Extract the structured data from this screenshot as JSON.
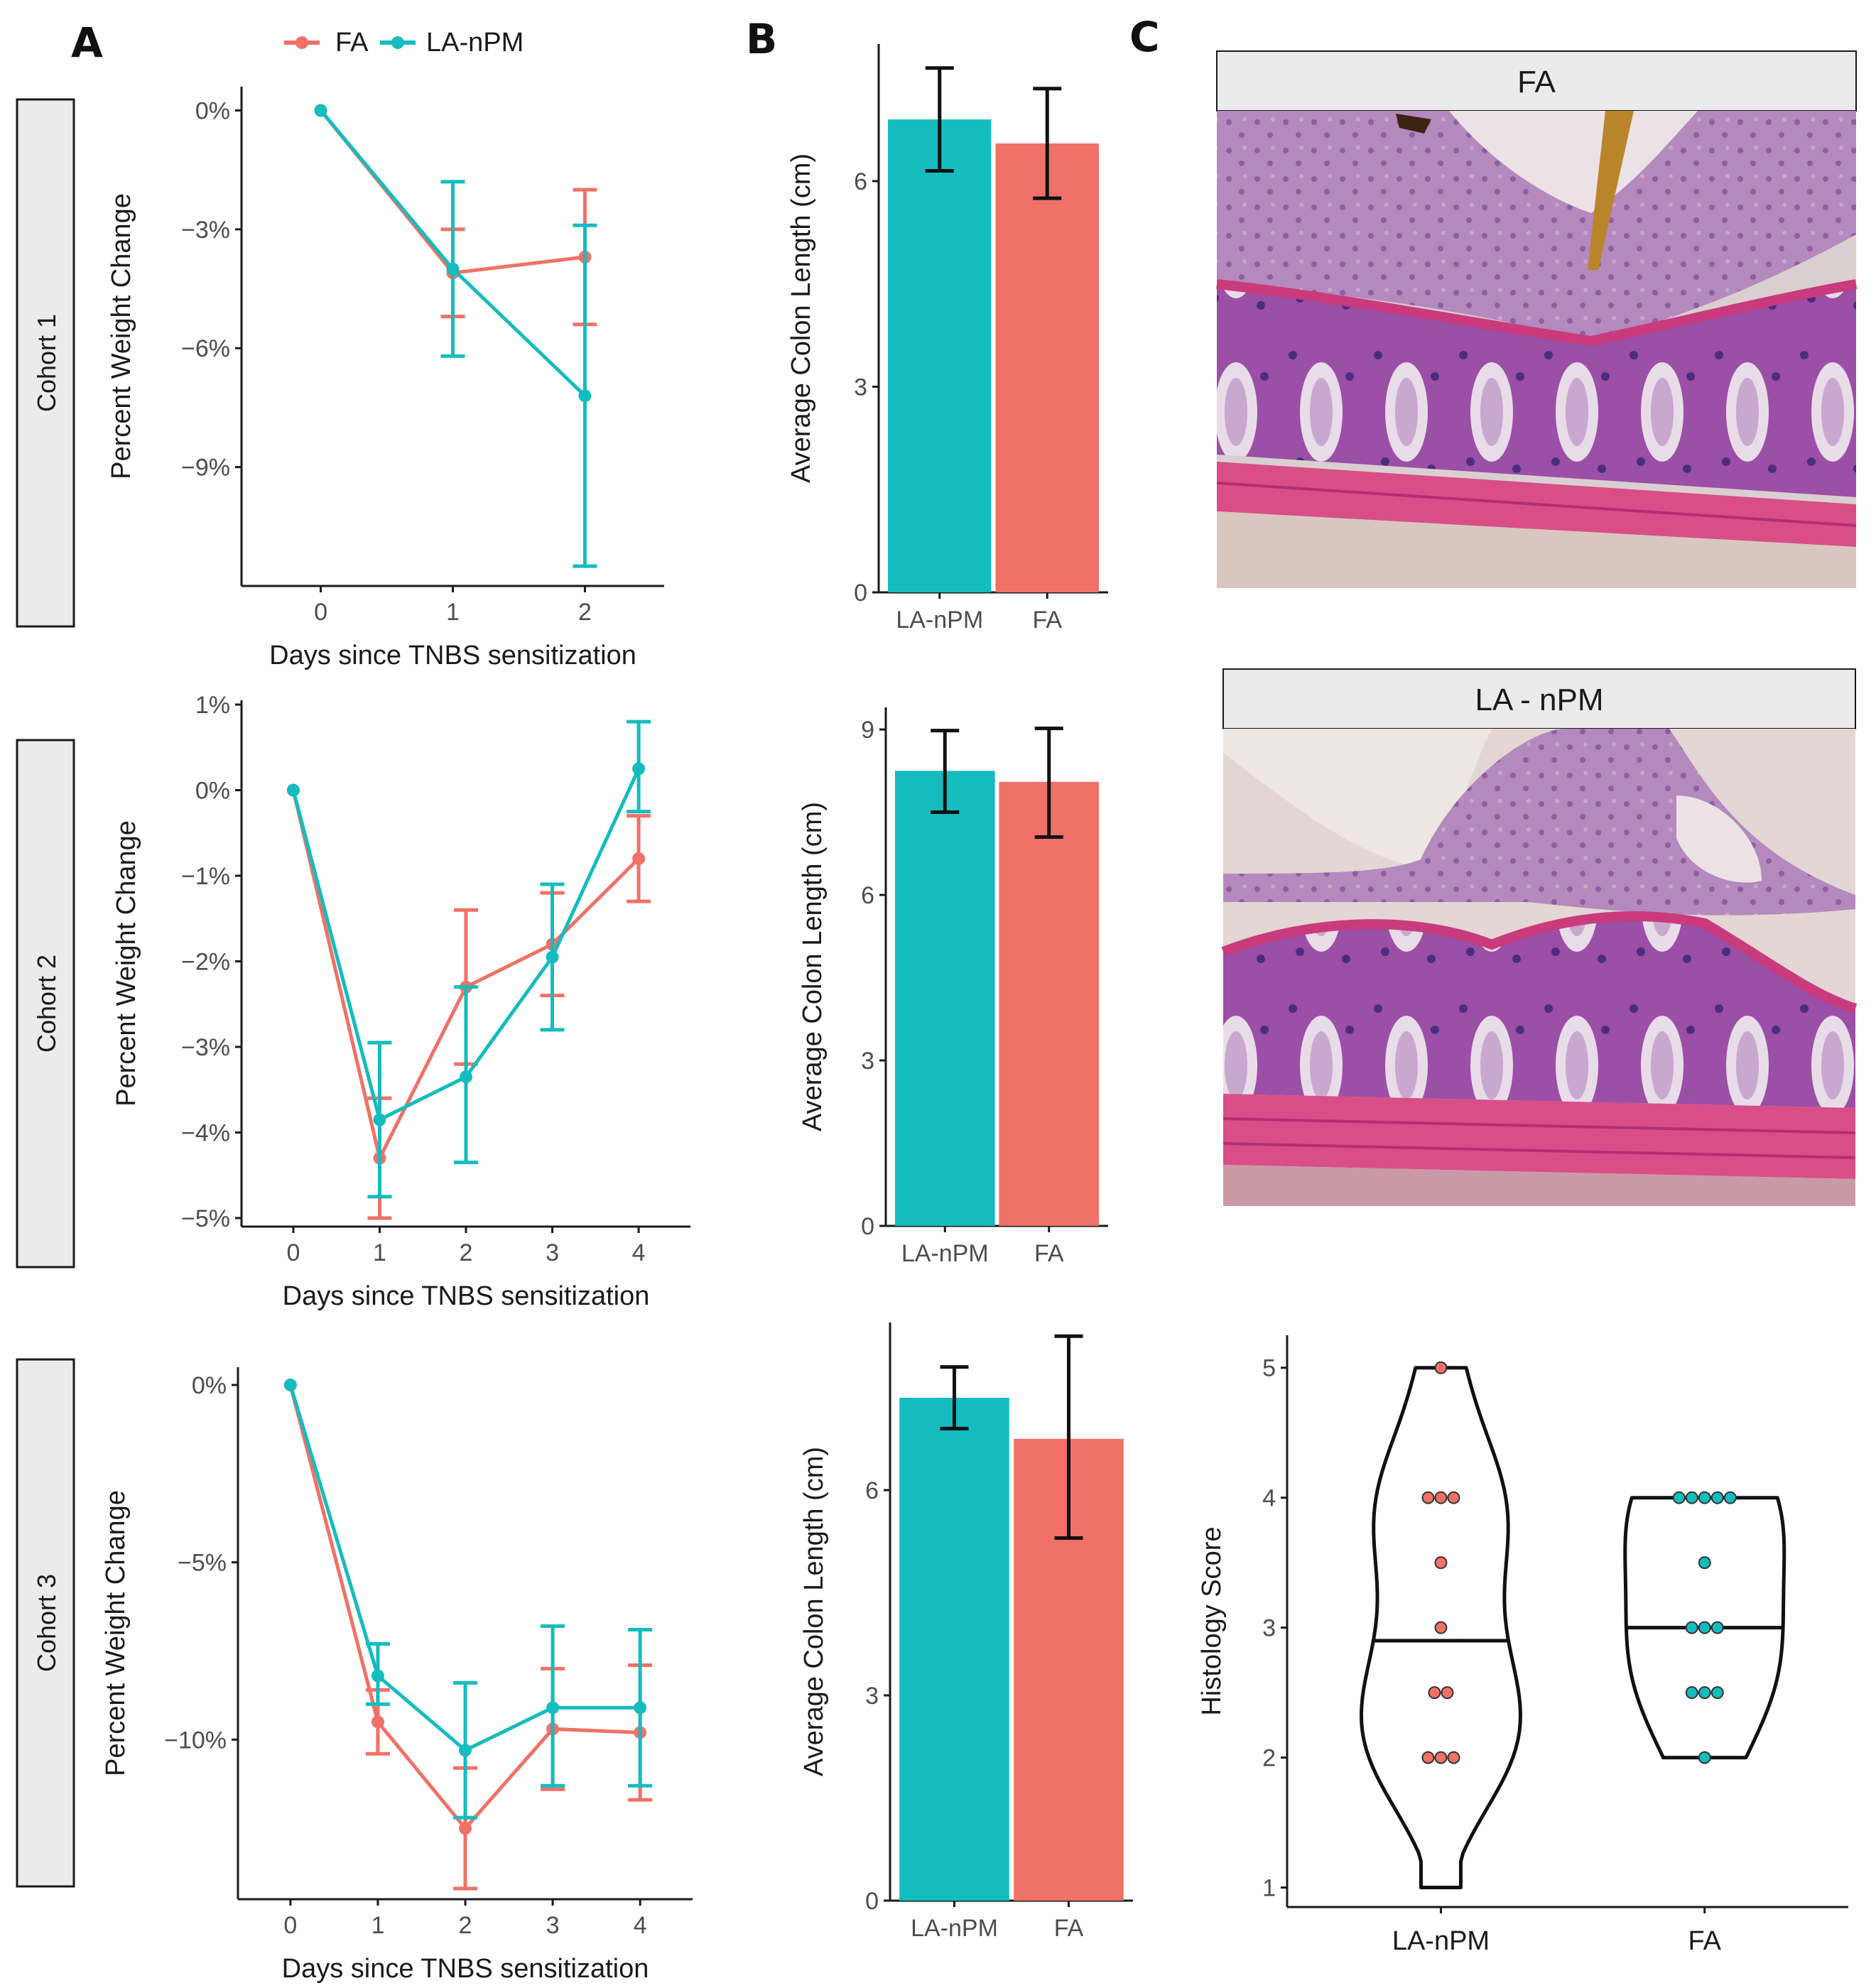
{
  "panel_labels": [
    "A",
    "B",
    "C"
  ],
  "colors": {
    "FA": "#f07167",
    "LA-nPM": "#14bcbf",
    "axis": "#1a1a1a",
    "strip": "#ebebeb"
  },
  "legend": {
    "items": [
      "FA",
      "LA-nPM"
    ]
  },
  "histology": {
    "FA": {
      "title": "FA"
    },
    "LA-nPM": {
      "title": "LA - nPM"
    }
  },
  "chart_data": [
    {
      "type": "line",
      "id": "weight-cohort-1",
      "strip": "Cohort 1",
      "xlabel": "Days since TNBS sensitization",
      "ylabel": "Percent Weight Change",
      "x": [
        0,
        1,
        2
      ],
      "xlim": [
        -0.6,
        2.6
      ],
      "ylim": [
        -12,
        0.6
      ],
      "yticks": [
        0,
        -3,
        -6,
        -9
      ],
      "ytick_labels": [
        "0%",
        "−3%",
        "−6%",
        "−9%"
      ],
      "series": [
        {
          "name": "FA",
          "values": [
            0,
            -4.1,
            -3.7
          ],
          "err_low": [
            0,
            -5.2,
            -5.4
          ],
          "err_high": [
            0,
            -3.0,
            -2.0
          ]
        },
        {
          "name": "LA-nPM",
          "values": [
            0,
            -4.0,
            -7.2
          ],
          "err_low": [
            0,
            -6.2,
            -11.5
          ],
          "err_high": [
            0,
            -1.8,
            -2.9
          ]
        }
      ]
    },
    {
      "type": "line",
      "id": "weight-cohort-2",
      "strip": "Cohort 2",
      "xlabel": "Days since TNBS sensitization",
      "ylabel": "Percent Weight Change",
      "x": [
        0,
        1,
        2,
        3,
        4
      ],
      "xlim": [
        -0.6,
        4.6
      ],
      "ylim": [
        -5.1,
        1.05
      ],
      "yticks": [
        1,
        0,
        -1,
        -2,
        -3,
        -4,
        -5
      ],
      "ytick_labels": [
        "1%",
        "0%",
        "−1%",
        "−2%",
        "−3%",
        "−4%",
        "−5%"
      ],
      "series": [
        {
          "name": "FA",
          "values": [
            0,
            -4.3,
            -2.3,
            -1.8,
            -0.8
          ],
          "err_low": [
            0,
            -5.0,
            -3.2,
            -2.4,
            -1.3
          ],
          "err_high": [
            0,
            -3.6,
            -1.4,
            -1.2,
            -0.3
          ]
        },
        {
          "name": "LA-nPM",
          "values": [
            0,
            -3.85,
            -3.35,
            -1.95,
            0.25
          ],
          "err_low": [
            0,
            -4.75,
            -4.35,
            -2.8,
            -0.25
          ],
          "err_high": [
            0,
            -2.95,
            -2.3,
            -1.1,
            0.8
          ]
        }
      ]
    },
    {
      "type": "line",
      "id": "weight-cohort-3",
      "strip": "Cohort 3",
      "xlabel": "Days since TNBS sensitization",
      "ylabel": "Percent Weight Change",
      "x": [
        0,
        1,
        2,
        3,
        4
      ],
      "xlim": [
        -0.6,
        4.6
      ],
      "ylim": [
        -14.5,
        0.5
      ],
      "yticks": [
        0,
        -5,
        -10
      ],
      "ytick_labels": [
        "0%",
        "−5%",
        "−10%"
      ],
      "series": [
        {
          "name": "FA",
          "values": [
            0,
            -9.5,
            -12.5,
            -9.7,
            -9.8
          ],
          "err_low": [
            0,
            -10.4,
            -14.2,
            -11.4,
            -11.7
          ],
          "err_high": [
            0,
            -8.6,
            -10.8,
            -8.0,
            -7.9
          ]
        },
        {
          "name": "LA-nPM",
          "values": [
            0,
            -8.2,
            -10.3,
            -9.1,
            -9.1
          ],
          "err_low": [
            0,
            -9.0,
            -12.2,
            -11.3,
            -11.3
          ],
          "err_high": [
            0,
            -7.3,
            -8.4,
            -6.8,
            -6.9
          ]
        }
      ]
    },
    {
      "type": "bar",
      "id": "colon-cohort-1",
      "ylabel": "Average Colon Length (cm)",
      "categories": [
        "LA-nPM",
        "FA"
      ],
      "values": [
        6.9,
        6.55
      ],
      "err_low": [
        6.15,
        5.75
      ],
      "err_high": [
        7.65,
        7.35
      ],
      "ylim": [
        0,
        8.0
      ],
      "yticks": [
        0,
        3,
        6
      ],
      "ytick_labels": [
        "0",
        "3",
        "6"
      ]
    },
    {
      "type": "bar",
      "id": "colon-cohort-2",
      "ylabel": "Average Colon Length (cm)",
      "categories": [
        "LA-nPM",
        "FA"
      ],
      "values": [
        8.25,
        8.05
      ],
      "err_low": [
        7.5,
        7.05
      ],
      "err_high": [
        8.98,
        9.02
      ],
      "ylim": [
        0,
        9.4
      ],
      "yticks": [
        0,
        3,
        6,
        9
      ],
      "ytick_labels": [
        "0",
        "3",
        "6",
        "9"
      ]
    },
    {
      "type": "bar",
      "id": "colon-cohort-3",
      "ylabel": "Average Colon Length (cm)",
      "categories": [
        "LA-nPM",
        "FA"
      ],
      "values": [
        7.35,
        6.75
      ],
      "err_low": [
        6.9,
        5.3
      ],
      "err_high": [
        7.8,
        8.25
      ],
      "ylim": [
        0,
        8.45
      ],
      "yticks": [
        0,
        3,
        6
      ],
      "ytick_labels": [
        "0",
        "3",
        "6"
      ]
    },
    {
      "type": "violin",
      "id": "histology-score",
      "ylabel": "Histology Score",
      "categories": [
        "LA-nPM",
        "FA"
      ],
      "ylim": [
        0.85,
        5.25
      ],
      "yticks": [
        1,
        2,
        3,
        4,
        5
      ],
      "ytick_labels": [
        "1",
        "2",
        "3",
        "4",
        "5"
      ],
      "groups": [
        {
          "name": "LA-nPM",
          "median": 2.9,
          "range": [
            1,
            5
          ],
          "dot_color": "#f07167",
          "points": [
            2,
            2,
            2,
            2.5,
            2.5,
            3,
            3.5,
            4,
            4,
            4,
            5
          ]
        },
        {
          "name": "FA",
          "median": 3.0,
          "range": [
            2,
            4
          ],
          "dot_color": "#14bcbf",
          "points": [
            2,
            2.5,
            2.5,
            2.5,
            3,
            3,
            3,
            3.5,
            4,
            4,
            4,
            4,
            4
          ]
        }
      ]
    }
  ]
}
